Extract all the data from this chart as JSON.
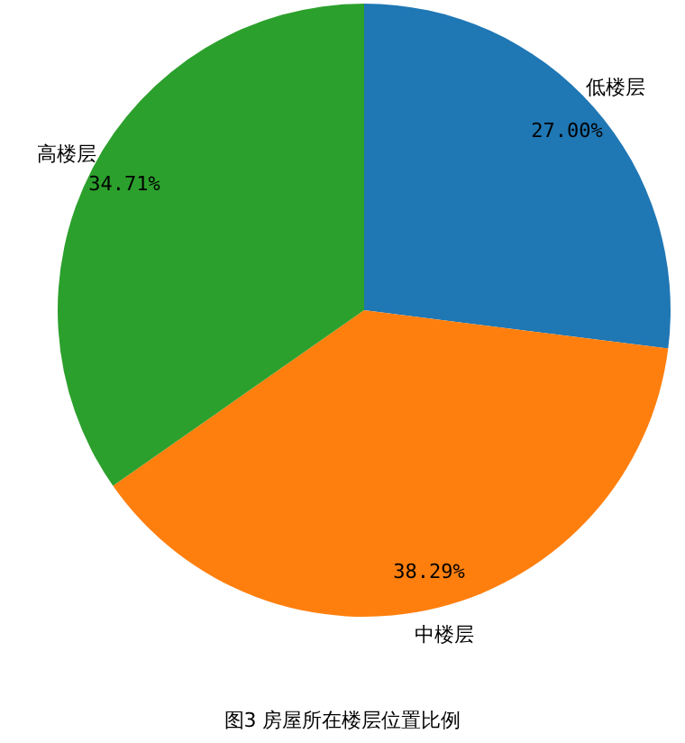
{
  "chart_data": {
    "type": "pie",
    "title": "图3 房屋所在楼层位置比例",
    "categories": [
      "低楼层",
      "中楼层",
      "高楼层"
    ],
    "values": [
      27.0,
      38.29,
      34.71
    ],
    "value_labels": [
      "27.00%",
      "38.29%",
      "34.71%"
    ],
    "colors": [
      "#1f77b4",
      "#ff7f0e",
      "#2ca02c"
    ]
  }
}
